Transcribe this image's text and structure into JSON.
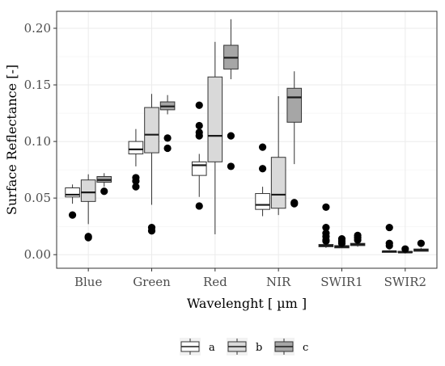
{
  "chart_data": {
    "type": "boxplot",
    "xlabel": "Wavelenght [ µm ]",
    "ylabel": "Surface Reflectance [-]",
    "ylim": [
      -0.012,
      0.215
    ],
    "yticks": [
      0.0,
      0.05,
      0.1,
      0.15,
      0.2
    ],
    "ytick_labels": [
      "0.00",
      "0.05",
      "0.10",
      "0.15",
      "0.20"
    ],
    "categories": [
      "Blue",
      "Green",
      "Red",
      "NIR",
      "SWIR1",
      "SWIR2"
    ],
    "grid": true,
    "legend_position": "bottom",
    "series": [
      {
        "name": "a",
        "color": "#ffffff",
        "boxes": [
          {
            "q1": 0.051,
            "median": 0.053,
            "q3": 0.059,
            "whisker_low": 0.045,
            "whisker_high": 0.062,
            "outliers": [
              0.035
            ]
          },
          {
            "q1": 0.089,
            "median": 0.093,
            "q3": 0.1,
            "whisker_low": 0.078,
            "whisker_high": 0.111,
            "outliers": [
              0.068,
              0.065,
              0.06
            ]
          },
          {
            "q1": 0.07,
            "median": 0.079,
            "q3": 0.082,
            "whisker_low": 0.051,
            "whisker_high": 0.089,
            "outliers": [
              0.132,
              0.114,
              0.108,
              0.105,
              0.043
            ]
          },
          {
            "q1": 0.04,
            "median": 0.044,
            "q3": 0.054,
            "whisker_low": 0.034,
            "whisker_high": 0.06,
            "outliers": [
              0.095,
              0.076
            ]
          },
          {
            "q1": 0.007,
            "median": 0.008,
            "q3": 0.009,
            "whisker_low": 0.006,
            "whisker_high": 0.01,
            "outliers": [
              0.042,
              0.024,
              0.019,
              0.016,
              0.013,
              0.012
            ]
          },
          {
            "q1": 0.002,
            "median": 0.003,
            "q3": 0.003,
            "whisker_low": 0.002,
            "whisker_high": 0.004,
            "outliers": [
              0.024,
              0.01,
              0.008
            ]
          }
        ]
      },
      {
        "name": "b",
        "color": "#d9d9d9",
        "boxes": [
          {
            "q1": 0.047,
            "median": 0.055,
            "q3": 0.066,
            "whisker_low": 0.027,
            "whisker_high": 0.071,
            "outliers": [
              0.016,
              0.015
            ]
          },
          {
            "q1": 0.09,
            "median": 0.106,
            "q3": 0.13,
            "whisker_low": 0.044,
            "whisker_high": 0.142,
            "outliers": [
              0.024,
              0.021
            ]
          },
          {
            "q1": 0.082,
            "median": 0.105,
            "q3": 0.157,
            "whisker_low": 0.018,
            "whisker_high": 0.188,
            "outliers": []
          },
          {
            "q1": 0.041,
            "median": 0.053,
            "q3": 0.086,
            "whisker_low": 0.035,
            "whisker_high": 0.14,
            "outliers": []
          },
          {
            "q1": 0.006,
            "median": 0.007,
            "q3": 0.008,
            "whisker_low": 0.006,
            "whisker_high": 0.009,
            "outliers": [
              0.014,
              0.012,
              0.01
            ]
          },
          {
            "q1": 0.002,
            "median": 0.002,
            "q3": 0.003,
            "whisker_low": 0.001,
            "whisker_high": 0.004,
            "outliers": [
              0.005
            ]
          }
        ]
      },
      {
        "name": "c",
        "color": "#a6a6a6",
        "boxes": [
          {
            "q1": 0.064,
            "median": 0.066,
            "q3": 0.069,
            "whisker_low": 0.06,
            "whisker_high": 0.072,
            "outliers": [
              0.056
            ]
          },
          {
            "q1": 0.128,
            "median": 0.131,
            "q3": 0.135,
            "whisker_low": 0.124,
            "whisker_high": 0.141,
            "outliers": [
              0.103,
              0.094
            ]
          },
          {
            "q1": 0.164,
            "median": 0.174,
            "q3": 0.185,
            "whisker_low": 0.155,
            "whisker_high": 0.208,
            "outliers": [
              0.105,
              0.078
            ]
          },
          {
            "q1": 0.117,
            "median": 0.139,
            "q3": 0.147,
            "whisker_low": 0.08,
            "whisker_high": 0.162,
            "outliers": [
              0.046,
              0.045
            ]
          },
          {
            "q1": 0.008,
            "median": 0.009,
            "q3": 0.01,
            "whisker_low": 0.007,
            "whisker_high": 0.011,
            "outliers": [
              0.017,
              0.015,
              0.013
            ]
          },
          {
            "q1": 0.003,
            "median": 0.004,
            "q3": 0.005,
            "whisker_low": 0.003,
            "whisker_high": 0.006,
            "outliers": [
              0.01
            ]
          }
        ]
      }
    ]
  }
}
